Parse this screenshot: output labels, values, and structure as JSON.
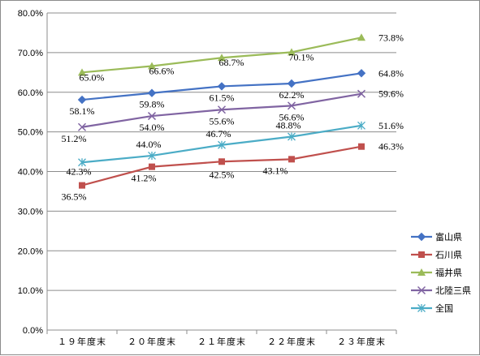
{
  "chart_data": {
    "type": "line",
    "title": "",
    "xlabel": "",
    "ylabel": "",
    "categories": [
      "１９年度末",
      "２０年度末",
      "２１年度末",
      "２２年度末",
      "２３年度末"
    ],
    "ylim": [
      0,
      80
    ],
    "yticks": [
      "0.0%",
      "10.0%",
      "20.0%",
      "30.0%",
      "40.0%",
      "50.0%",
      "60.0%",
      "70.0%",
      "80.0%"
    ],
    "grid": true,
    "legend_position": "right",
    "series": [
      {
        "name": "富山県",
        "color": "#4472c4",
        "marker": "diamond",
        "values": [
          58.1,
          59.8,
          61.5,
          62.2,
          64.8
        ],
        "labels": [
          "58.1%",
          "59.8%",
          "61.5%",
          "62.2%",
          "64.8%"
        ]
      },
      {
        "name": "石川県",
        "color": "#c0504d",
        "marker": "square",
        "values": [
          36.5,
          41.2,
          42.5,
          43.1,
          46.3
        ],
        "labels": [
          "36.5%",
          "41.2%",
          "42.5%",
          "43.1%",
          "46.3%"
        ]
      },
      {
        "name": "福井県",
        "color": "#9bbb59",
        "marker": "triangle",
        "values": [
          65.0,
          66.6,
          68.7,
          70.1,
          73.8
        ],
        "labels": [
          "65.0%",
          "66.6%",
          "68.7%",
          "70.1%",
          "73.8%"
        ]
      },
      {
        "name": "北陸三県",
        "color": "#8064a2",
        "marker": "x",
        "values": [
          51.2,
          54.0,
          55.6,
          56.6,
          59.6
        ],
        "labels": [
          "51.2%",
          "54.0%",
          "55.6%",
          "56.6%",
          "59.6%"
        ]
      },
      {
        "name": "全国",
        "color": "#4bacc6",
        "marker": "star",
        "values": [
          42.3,
          44.0,
          46.7,
          48.8,
          51.6
        ],
        "labels": [
          "42.3%",
          "44.0%",
          "46.7%",
          "48.8%",
          "51.6%"
        ]
      }
    ]
  }
}
